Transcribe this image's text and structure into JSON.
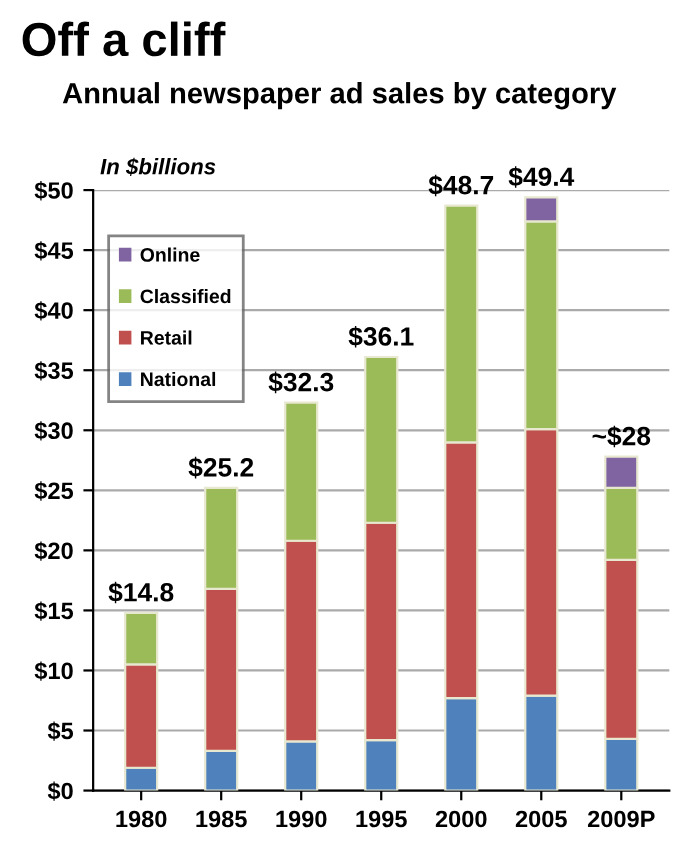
{
  "chart_data": {
    "type": "bar",
    "title": "Off a cliff",
    "subtitle": "Annual newspaper ad sales by category",
    "ylabel": "In $billions",
    "categories": [
      "1980",
      "1985",
      "1990",
      "1995",
      "2000",
      "2005",
      "2009P"
    ],
    "stacked": true,
    "series": [
      {
        "name": "National",
        "color": "#4f81bd",
        "values": [
          1.9,
          3.3,
          4.1,
          4.2,
          7.7,
          7.9,
          4.3
        ]
      },
      {
        "name": "Retail",
        "color": "#c0504d",
        "values": [
          8.6,
          13.5,
          16.7,
          18.1,
          21.3,
          22.2,
          14.9
        ]
      },
      {
        "name": "Classified",
        "color": "#9bbb59",
        "values": [
          4.3,
          8.4,
          11.5,
          13.8,
          19.7,
          17.3,
          6.0
        ]
      },
      {
        "name": "Online",
        "color": "#8064a2",
        "values": [
          null,
          null,
          null,
          null,
          null,
          2.0,
          2.6
        ]
      }
    ],
    "totals": [
      "$14.8",
      "$25.2",
      "$32.3",
      "$36.1",
      "$48.7",
      "$49.4",
      "~$28"
    ],
    "ylim": [
      0,
      50
    ],
    "yticks": [
      {
        "value": 0,
        "label": "$0"
      },
      {
        "value": 5,
        "label": "$5"
      },
      {
        "value": 10,
        "label": "$10"
      },
      {
        "value": 15,
        "label": "$15"
      },
      {
        "value": 20,
        "label": "$20"
      },
      {
        "value": 25,
        "label": "$25"
      },
      {
        "value": 30,
        "label": "$30"
      },
      {
        "value": 35,
        "label": "$35"
      },
      {
        "value": 40,
        "label": "$40"
      },
      {
        "value": 45,
        "label": "$45"
      },
      {
        "value": 50,
        "label": "$50"
      }
    ],
    "grid": "y",
    "legend": "top left"
  }
}
